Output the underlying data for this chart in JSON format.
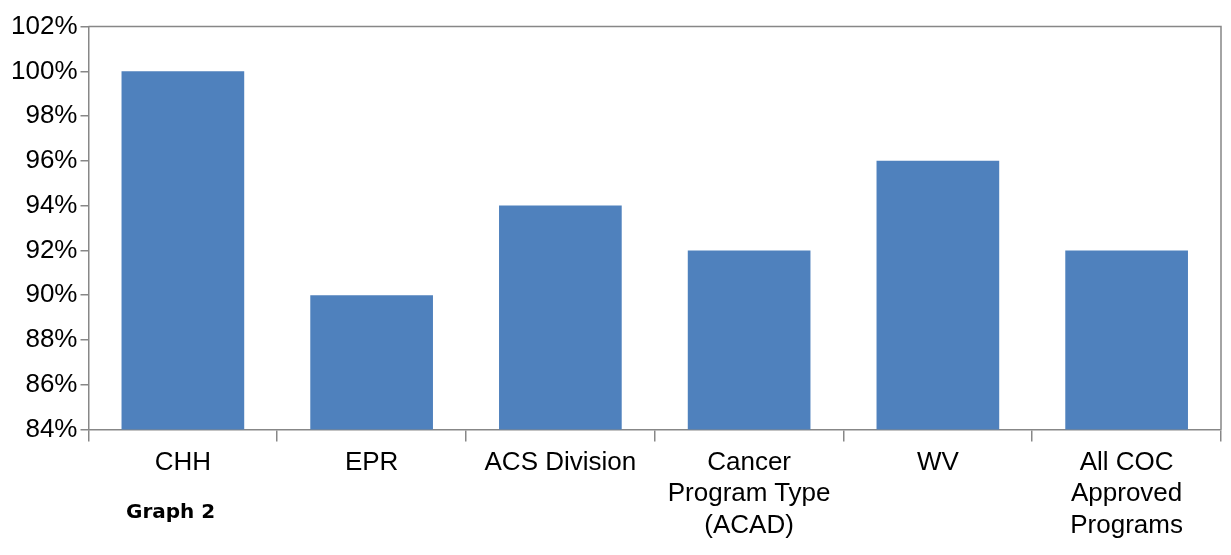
{
  "chart_data": {
    "type": "bar",
    "categories": [
      "CHH",
      "EPR",
      "ACS Division",
      "Cancer Program Type (ACAD)",
      "WV",
      "All COC Approved Programs"
    ],
    "values": [
      100,
      90,
      94,
      92,
      96,
      92
    ],
    "color": "#4f81bd",
    "ylim": [
      84,
      102
    ],
    "yticks": [
      {
        "value": 84,
        "label": "84%"
      },
      {
        "value": 86,
        "label": "86%"
      },
      {
        "value": 88,
        "label": "88%"
      },
      {
        "value": 90,
        "label": "90%"
      },
      {
        "value": 92,
        "label": "92%"
      },
      {
        "value": 94,
        "label": "94%"
      },
      {
        "value": 96,
        "label": "96%"
      },
      {
        "value": 98,
        "label": "98%"
      },
      {
        "value": 100,
        "label": "100%"
      },
      {
        "value": 102,
        "label": "102%"
      }
    ],
    "grid": false,
    "legend": false,
    "annotations": [
      "Graph 2"
    ]
  }
}
